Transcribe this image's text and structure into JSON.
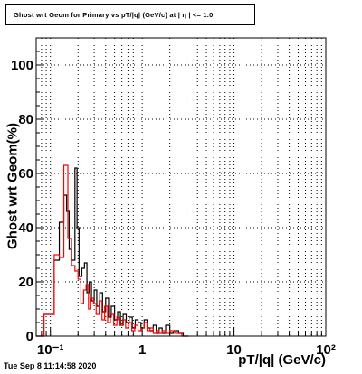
{
  "chart_data": {
    "type": "line",
    "title": "Ghost wrt Geom for Primary vs pT/|q| (GeV/c) at | η | <= 1.0",
    "xlabel": "pT/|q| (GeV/c)",
    "ylabel": "Ghost wrt Geom(%)",
    "x_scale": "log",
    "xlim": [
      0.07,
      100
    ],
    "ylim": [
      0,
      110
    ],
    "x_ticks": [
      {
        "value": 0.1,
        "label": "10⁻¹"
      },
      {
        "value": 1,
        "label": "1"
      },
      {
        "value": 10,
        "label": "10"
      },
      {
        "value": 100,
        "label": "10²"
      }
    ],
    "y_ticks": [
      0,
      20,
      40,
      60,
      80,
      100
    ],
    "grid": true,
    "series": [
      {
        "color": "#000000",
        "bins": [
          [
            0.07,
            0.085,
            0
          ],
          [
            0.085,
            0.11,
            8
          ],
          [
            0.11,
            0.125,
            28
          ],
          [
            0.125,
            0.14,
            42
          ],
          [
            0.14,
            0.15,
            52
          ],
          [
            0.15,
            0.16,
            46
          ],
          [
            0.16,
            0.17,
            32
          ],
          [
            0.17,
            0.185,
            28
          ],
          [
            0.185,
            0.195,
            62
          ],
          [
            0.195,
            0.205,
            40
          ],
          [
            0.205,
            0.22,
            22
          ],
          [
            0.22,
            0.235,
            25
          ],
          [
            0.235,
            0.25,
            27
          ],
          [
            0.25,
            0.265,
            16
          ],
          [
            0.265,
            0.28,
            20
          ],
          [
            0.28,
            0.3,
            13
          ],
          [
            0.3,
            0.32,
            17
          ],
          [
            0.32,
            0.345,
            11
          ],
          [
            0.345,
            0.37,
            16
          ],
          [
            0.37,
            0.4,
            9
          ],
          [
            0.4,
            0.43,
            14
          ],
          [
            0.43,
            0.46,
            7
          ],
          [
            0.46,
            0.5,
            11
          ],
          [
            0.5,
            0.54,
            6
          ],
          [
            0.54,
            0.58,
            9
          ],
          [
            0.58,
            0.62,
            4
          ],
          [
            0.62,
            0.67,
            8
          ],
          [
            0.67,
            0.72,
            5
          ],
          [
            0.72,
            0.78,
            7
          ],
          [
            0.78,
            0.84,
            3
          ],
          [
            0.84,
            0.9,
            6
          ],
          [
            0.9,
            0.97,
            5
          ],
          [
            0.97,
            1.05,
            3
          ],
          [
            1.05,
            1.13,
            6
          ],
          [
            1.13,
            1.22,
            3
          ],
          [
            1.22,
            1.32,
            2
          ],
          [
            1.32,
            1.42,
            4
          ],
          [
            1.42,
            1.53,
            1
          ],
          [
            1.53,
            1.65,
            3
          ],
          [
            1.65,
            1.8,
            1
          ],
          [
            1.8,
            2.0,
            4
          ],
          [
            2.0,
            2.2,
            1
          ],
          [
            2.2,
            2.5,
            2
          ],
          [
            2.5,
            2.8,
            1
          ],
          [
            2.8,
            3.2,
            0
          ]
        ]
      },
      {
        "color": "#ff0000",
        "bins": [
          [
            0.07,
            0.085,
            0
          ],
          [
            0.085,
            0.11,
            8
          ],
          [
            0.11,
            0.125,
            30
          ],
          [
            0.125,
            0.14,
            29
          ],
          [
            0.14,
            0.155,
            63
          ],
          [
            0.155,
            0.17,
            36
          ],
          [
            0.17,
            0.185,
            26
          ],
          [
            0.185,
            0.2,
            24
          ],
          [
            0.2,
            0.215,
            21
          ],
          [
            0.215,
            0.23,
            12
          ],
          [
            0.23,
            0.245,
            17
          ],
          [
            0.245,
            0.26,
            19
          ],
          [
            0.26,
            0.275,
            10
          ],
          [
            0.275,
            0.295,
            14
          ],
          [
            0.295,
            0.315,
            12
          ],
          [
            0.315,
            0.34,
            8
          ],
          [
            0.34,
            0.365,
            13
          ],
          [
            0.365,
            0.39,
            6
          ],
          [
            0.39,
            0.42,
            11
          ],
          [
            0.42,
            0.45,
            5
          ],
          [
            0.45,
            0.49,
            8
          ],
          [
            0.49,
            0.53,
            4
          ],
          [
            0.53,
            0.57,
            7
          ],
          [
            0.57,
            0.61,
            4
          ],
          [
            0.61,
            0.66,
            6
          ],
          [
            0.66,
            0.71,
            3
          ],
          [
            0.71,
            0.77,
            5
          ],
          [
            0.77,
            0.83,
            2
          ],
          [
            0.83,
            0.9,
            4
          ],
          [
            0.9,
            0.97,
            2
          ],
          [
            0.97,
            1.05,
            3
          ],
          [
            1.05,
            1.13,
            5
          ],
          [
            1.13,
            1.22,
            2
          ],
          [
            1.22,
            1.32,
            3
          ],
          [
            1.32,
            1.42,
            1
          ],
          [
            1.42,
            1.53,
            2
          ],
          [
            1.53,
            1.65,
            1
          ],
          [
            1.65,
            1.8,
            2
          ],
          [
            1.8,
            2.0,
            1
          ],
          [
            2.0,
            2.3,
            2
          ],
          [
            2.3,
            2.7,
            1
          ],
          [
            2.7,
            3.2,
            0
          ]
        ]
      }
    ]
  },
  "footer": "Tue Sep  8 11:14:58 2020"
}
